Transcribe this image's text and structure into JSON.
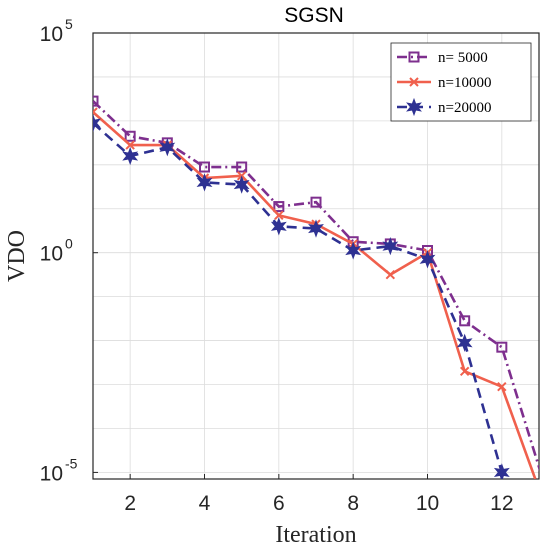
{
  "chart_data": {
    "type": "line",
    "title": "SGSN",
    "xlabel": "Iteration",
    "ylabel": "VDO",
    "xlim": [
      1,
      13
    ],
    "ylim_log10": [
      -5.15,
      5
    ],
    "yscale": "log",
    "grid": true,
    "legend_position": "top-right",
    "x_ticks": [
      2,
      4,
      6,
      8,
      10,
      12
    ],
    "x_tick_labels": [
      "2",
      "4",
      "6",
      "8",
      "10",
      "12"
    ],
    "y_ticks_log10": [
      5,
      0,
      -5
    ],
    "y_tick_labels": [
      {
        "base": "10",
        "exp": "5"
      },
      {
        "base": "10",
        "exp": "0"
      },
      {
        "base": "10",
        "exp": "-5"
      }
    ],
    "series": [
      {
        "name": "n= 5000",
        "color": "#7E2F8E",
        "dash": "dashdot",
        "marker": "square",
        "x": [
          1,
          2,
          3,
          4,
          5,
          6,
          7,
          8,
          9,
          10,
          11,
          12,
          13.1
        ],
        "log10_y": [
          3.45,
          2.65,
          2.5,
          1.95,
          1.95,
          1.05,
          1.15,
          0.25,
          0.2,
          0.05,
          -1.55,
          -2.15,
          -5.15
        ]
      },
      {
        "name": "n=10000",
        "color": "#F0604D",
        "dash": "solid",
        "marker": "x",
        "x": [
          1,
          2,
          3,
          4,
          5,
          6,
          7,
          8,
          9,
          10,
          11,
          12,
          12.9
        ],
        "log10_y": [
          3.2,
          2.45,
          2.45,
          1.7,
          1.75,
          0.85,
          0.65,
          0.2,
          -0.5,
          0.0,
          -2.7,
          -3.05,
          -5.15
        ]
      },
      {
        "name": "n=20000",
        "color": "#2E3192",
        "dash": "dashed",
        "marker": "star",
        "x": [
          1,
          2,
          3,
          4,
          5,
          6,
          7,
          8,
          9,
          10,
          11,
          12
        ],
        "log10_y": [
          2.95,
          2.2,
          2.4,
          1.6,
          1.55,
          0.6,
          0.55,
          0.05,
          0.15,
          -0.15,
          -2.05,
          -5.0
        ]
      }
    ]
  }
}
